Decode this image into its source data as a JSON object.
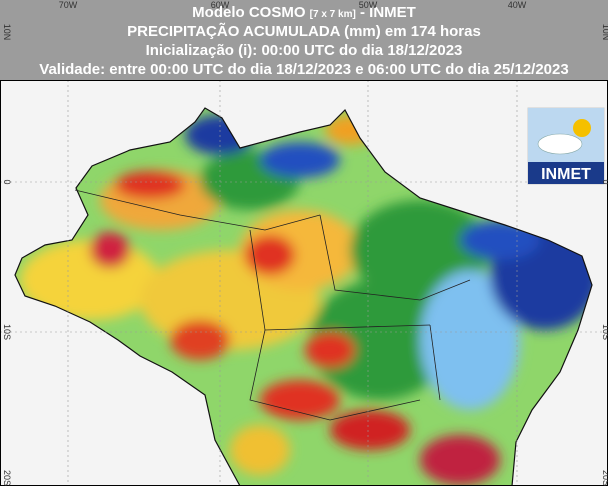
{
  "header": {
    "line1": {
      "model": "Modelo COSMO",
      "resolution": "[7 x 7 km]",
      "source": "- INMET"
    },
    "line2": "PRECIPITAÇÃO ACUMULADA (mm) em 174 horas",
    "line3": "Inicialização (i): 00:00 UTC do dia 18/12/2023",
    "line4": "Validade: entre 00:00 UTC do dia 18/12/2023 e 06:00 UTC do dia 25/12/2023"
  },
  "map": {
    "lon_labels": [
      "70W",
      "60W",
      "50W",
      "40W"
    ],
    "lat_labels": [
      "10N",
      "0",
      "10S",
      "20S"
    ]
  },
  "logo": {
    "text": "INMET"
  }
}
